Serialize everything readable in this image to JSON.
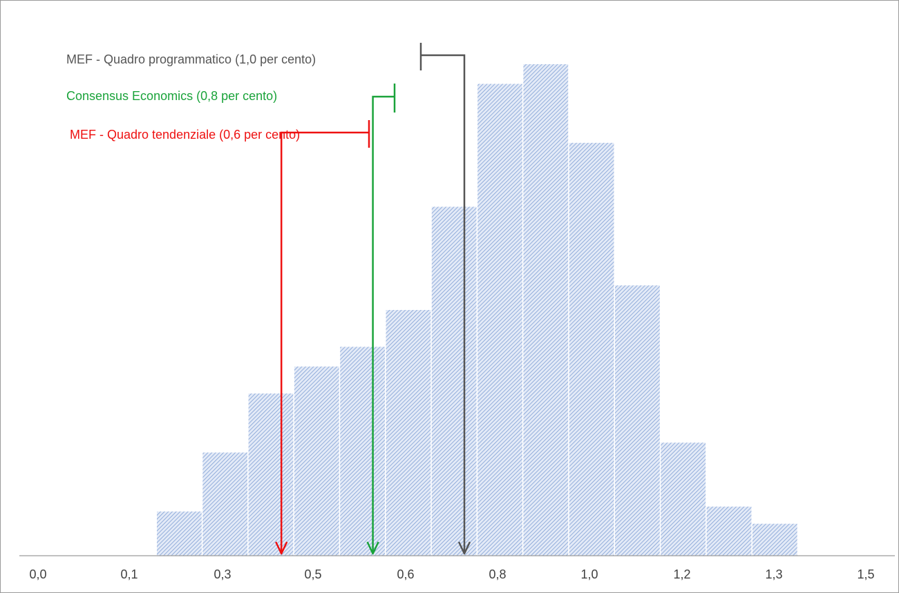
{
  "chart_data": {
    "type": "bar",
    "title": "",
    "xlabel": "",
    "ylabel": "",
    "x_ticks": [
      "0,0",
      "0,1",
      "0,3",
      "0,5",
      "0,6",
      "0,8",
      "1,0",
      "1,2",
      "1,3",
      "1,5"
    ],
    "bins": [
      {
        "center": 0.2,
        "value": 0.09
      },
      {
        "center": 0.3,
        "value": 0.21
      },
      {
        "center": 0.4,
        "value": 0.33
      },
      {
        "center": 0.5,
        "value": 0.385
      },
      {
        "center": 0.6,
        "value": 0.425
      },
      {
        "center": 0.7,
        "value": 0.5
      },
      {
        "center": 0.8,
        "value": 0.71
      },
      {
        "center": 0.9,
        "value": 0.96
      },
      {
        "center": 1.0,
        "value": 1.0
      },
      {
        "center": 1.1,
        "value": 0.84
      },
      {
        "center": 1.2,
        "value": 0.55
      },
      {
        "center": 1.3,
        "value": 0.23
      },
      {
        "center": 1.4,
        "value": 0.1
      },
      {
        "center": 1.5,
        "value": 0.065
      }
    ],
    "bar_color": "#7f9fd4",
    "grid": false,
    "annotations": [
      {
        "label": "MEF - Quadro programmatico (1,0 per cento)",
        "target": 1.0,
        "color": "#555555"
      },
      {
        "label": "Consensus Economics (0,8 per cento)",
        "target": 0.8,
        "color": "#1aa33a"
      },
      {
        "label": "MEF - Quadro tendenziale (0,6 per cento)",
        "target": 0.6,
        "color": "#ee1111"
      }
    ]
  }
}
